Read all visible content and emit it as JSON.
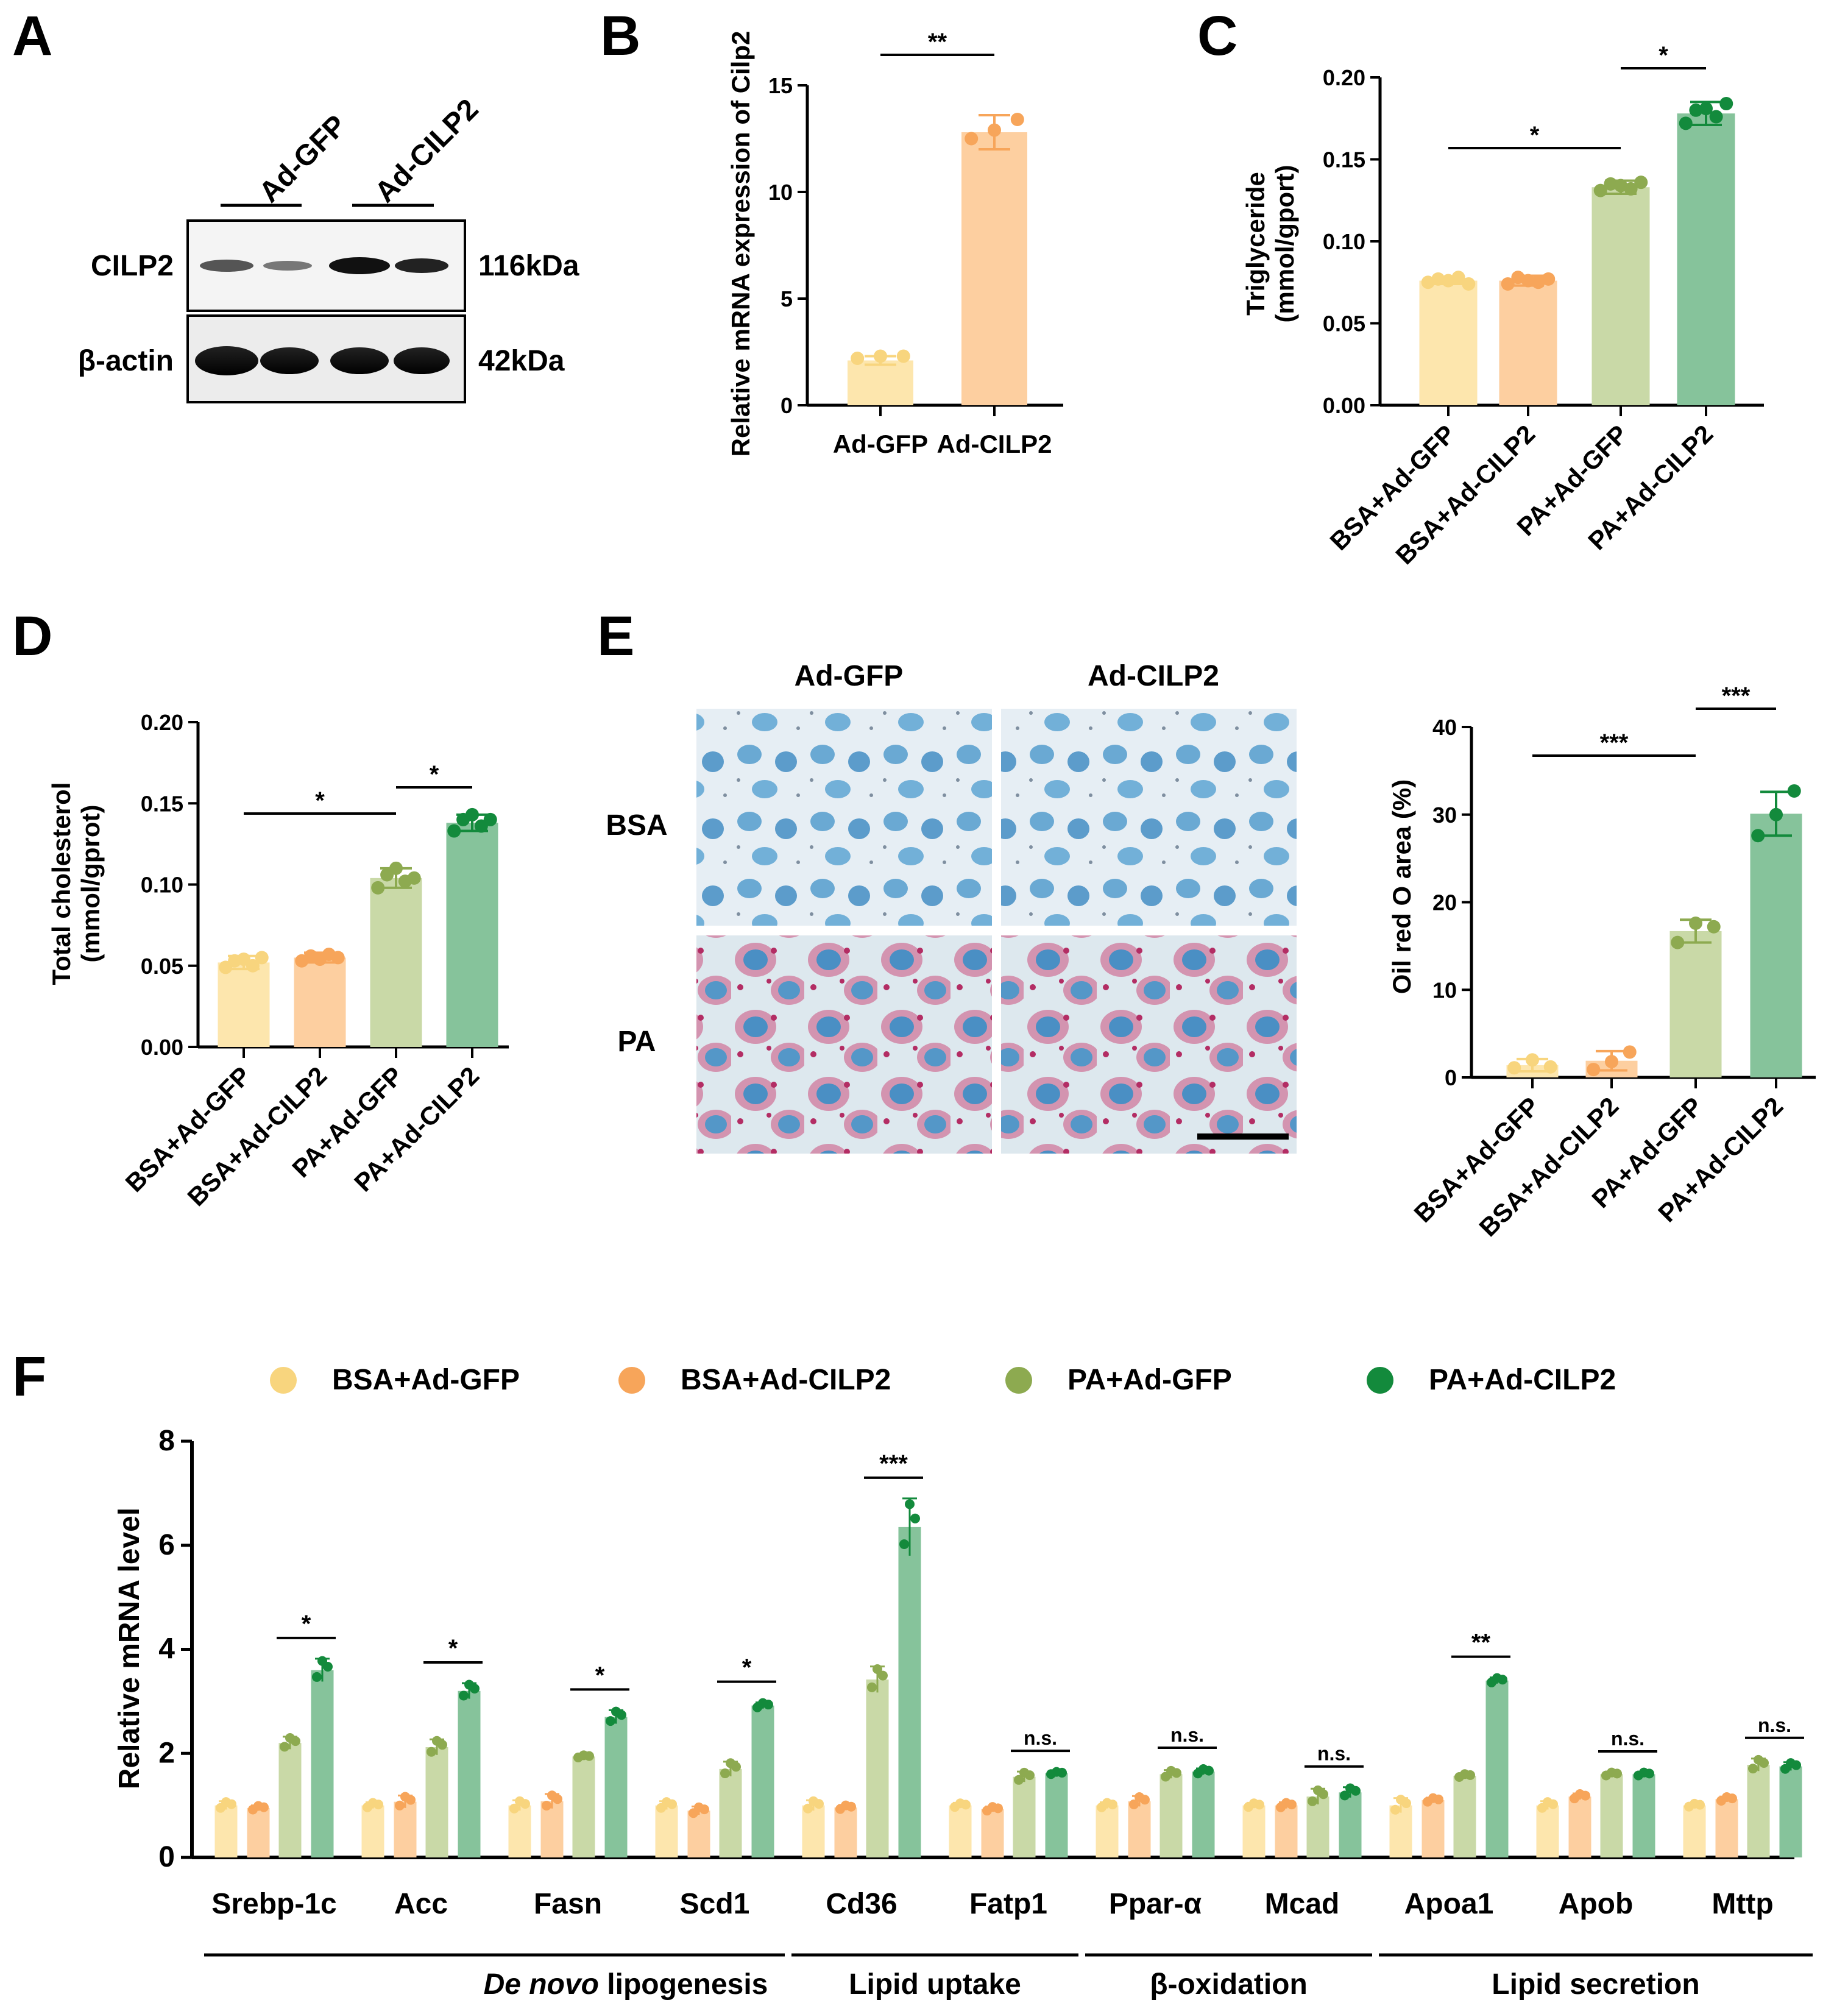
{
  "colors": {
    "bsa_gfp": "#fde6ad",
    "bsa_cilp2": "#fdcfa0",
    "pa_gfp": "#c9d9a7",
    "pa_cilp2": "#86c39b",
    "dot_bsa_gfp": "#f8d57e",
    "dot_bsa_cilp2": "#f7a55a",
    "dot_pa_gfp": "#8daa50",
    "dot_pa_cilp2": "#138a3c"
  },
  "panelA": {
    "label": "A",
    "lanes": [
      "Ad-GFP",
      "Ad-CILP2"
    ],
    "rows": [
      {
        "name": "CILP2",
        "size": "116kDa"
      },
      {
        "name": "β-actin",
        "size": "42kDa"
      }
    ]
  },
  "panelE": {
    "label": "E",
    "col_headers": [
      "Ad-GFP",
      "Ad-CILP2"
    ],
    "row_headers": [
      "BSA",
      "PA"
    ]
  },
  "panelF": {
    "section_prefix_italic": "De novo",
    "section_prefix_rest": " lipogenesis"
  },
  "chart_data": [
    {
      "id": "B",
      "label": "B",
      "type": "bar",
      "categories": [
        "Ad-GFP",
        "Ad-CILP2"
      ],
      "values": [
        2.1,
        12.8
      ],
      "errors": [
        0.2,
        0.8
      ],
      "points": [
        [
          2.2,
          2.3,
          2.3
        ],
        [
          12.5,
          12.9,
          13.4
        ]
      ],
      "ylabel": "Relative mRNA expression of Cilp2",
      "ylim": [
        0,
        15
      ],
      "yticks": [
        "0",
        "5",
        "10",
        "15"
      ],
      "sig": [
        {
          "a": 0,
          "b": 1,
          "text": "**"
        }
      ]
    },
    {
      "id": "C",
      "label": "C",
      "type": "bar",
      "categories": [
        "BSA+Ad-GFP",
        "BSA+Ad-CILP2",
        "PA+Ad-GFP",
        "PA+Ad-CILP2"
      ],
      "values": [
        0.076,
        0.076,
        0.133,
        0.178
      ],
      "errors": [
        0.002,
        0.003,
        0.004,
        0.007
      ],
      "points": [
        [
          0.075,
          0.077,
          0.076,
          0.078,
          0.074
        ],
        [
          0.074,
          0.078,
          0.076,
          0.075,
          0.077
        ],
        [
          0.131,
          0.135,
          0.134,
          0.132,
          0.136
        ],
        [
          0.172,
          0.18,
          0.181,
          0.176,
          0.184
        ]
      ],
      "ylabel": "Triglyceride",
      "ylabel2": "(mmol/gport)",
      "ylim": [
        0,
        0.2
      ],
      "yticks": [
        "0.00",
        "0.05",
        "0.10",
        "0.15",
        "0.20"
      ],
      "sig": [
        {
          "a": 0,
          "b": 2,
          "text": "*"
        },
        {
          "a": 2,
          "b": 3,
          "text": "*"
        }
      ]
    },
    {
      "id": "D",
      "label": "D",
      "type": "bar",
      "categories": [
        "BSA+Ad-GFP",
        "BSA+Ad-CILP2",
        "PA+Ad-GFP",
        "PA+Ad-CILP2"
      ],
      "values": [
        0.052,
        0.055,
        0.104,
        0.138
      ],
      "errors": [
        0.004,
        0.003,
        0.006,
        0.005
      ],
      "points": [
        [
          0.049,
          0.053,
          0.054,
          0.05,
          0.055
        ],
        [
          0.053,
          0.056,
          0.054,
          0.057,
          0.055
        ],
        [
          0.098,
          0.106,
          0.11,
          0.102,
          0.104
        ],
        [
          0.133,
          0.14,
          0.143,
          0.136,
          0.14
        ]
      ],
      "ylabel": "Total cholesterol",
      "ylabel2": "(mmol/gprot)",
      "ylim": [
        0,
        0.2
      ],
      "yticks": [
        "0.00",
        "0.05",
        "0.10",
        "0.15",
        "0.20"
      ],
      "sig": [
        {
          "a": 0,
          "b": 2,
          "text": "*"
        },
        {
          "a": 2,
          "b": 3,
          "text": "*"
        }
      ]
    },
    {
      "id": "E",
      "type": "bar",
      "categories": [
        "BSA+Ad-GFP",
        "BSA+Ad-CILP2",
        "PA+Ad-GFP",
        "PA+Ad-CILP2"
      ],
      "values": [
        1.4,
        1.9,
        16.7,
        30.1
      ],
      "errors": [
        0.7,
        1.1,
        1.3,
        2.5
      ],
      "points": [
        [
          1.1,
          2.0,
          1.2
        ],
        [
          0.9,
          1.8,
          2.9
        ],
        [
          15.4,
          17.6,
          17.2
        ],
        [
          27.6,
          30.0,
          32.7
        ]
      ],
      "ylabel": "Oil red O area (%)",
      "ylim": [
        0,
        40
      ],
      "yticks": [
        "0",
        "10",
        "20",
        "30",
        "40"
      ],
      "sig": [
        {
          "a": 0,
          "b": 2,
          "text": "***"
        },
        {
          "a": 2,
          "b": 3,
          "text": "***"
        }
      ]
    },
    {
      "id": "F",
      "label": "F",
      "type": "grouped-bar",
      "legend": [
        "BSA+Ad-GFP",
        "BSA+Ad-CILP2",
        "PA+Ad-GFP",
        "PA+Ad-CILP2"
      ],
      "genes": [
        "Srebp-1c",
        "Acc",
        "Fasn",
        "Scd1",
        "Cd36",
        "Fatp1",
        "Ppar-α",
        "Mcad",
        "Apoa1",
        "Apob",
        "Mttp"
      ],
      "series": [
        {
          "name": "BSA+Ad-GFP",
          "values": [
            1.0,
            1.0,
            1.0,
            1.0,
            1.0,
            1.0,
            1.0,
            1.0,
            1.0,
            1.0,
            1.0
          ]
        },
        {
          "name": "BSA+Ad-CILP2",
          "values": [
            0.95,
            1.07,
            1.08,
            0.9,
            0.96,
            0.93,
            1.08,
            1.0,
            1.1,
            1.17,
            1.12
          ]
        },
        {
          "name": "PA+Ad-GFP",
          "values": [
            2.2,
            2.12,
            1.94,
            1.7,
            3.42,
            1.55,
            1.6,
            1.17,
            1.57,
            1.6,
            1.78
          ]
        },
        {
          "name": "PA+Ad-CILP2",
          "values": [
            3.6,
            3.2,
            2.7,
            2.92,
            6.35,
            1.62,
            1.65,
            1.25,
            3.4,
            1.6,
            1.75
          ]
        }
      ],
      "errors": [
        [
          0.08,
          0.06,
          0.1,
          0.08,
          0.1,
          0.05,
          0.06,
          0.05,
          0.14,
          0.08,
          0.04
        ],
        [
          0.05,
          0.12,
          0.14,
          0.08,
          0.05,
          0.05,
          0.1,
          0.06,
          0.05,
          0.06,
          0.05
        ],
        [
          0.12,
          0.15,
          0.03,
          0.14,
          0.25,
          0.1,
          0.08,
          0.15,
          0.04,
          0.04,
          0.12
        ],
        [
          0.22,
          0.15,
          0.13,
          0.06,
          0.55,
          0.03,
          0.06,
          0.1,
          0.06,
          0.04,
          0.08
        ]
      ],
      "sig": [
        "*",
        "*",
        "*",
        "*",
        "***",
        "n.s.",
        "n.s.",
        "n.s.",
        "**",
        "n.s.",
        "n.s."
      ],
      "groups": [
        {
          "name": "De novo lipogenesis",
          "from": 0,
          "to": 3
        },
        {
          "name": "Lipid uptake",
          "from": 4,
          "to": 5
        },
        {
          "name": "β-oxidation",
          "from": 6,
          "to": 7
        },
        {
          "name": "Lipid secretion",
          "from": 8,
          "to": 10
        }
      ],
      "ylabel": "Relative mRNA level",
      "ylim": [
        0,
        8
      ],
      "yticks": [
        "0",
        "2",
        "4",
        "6",
        "8"
      ]
    }
  ]
}
